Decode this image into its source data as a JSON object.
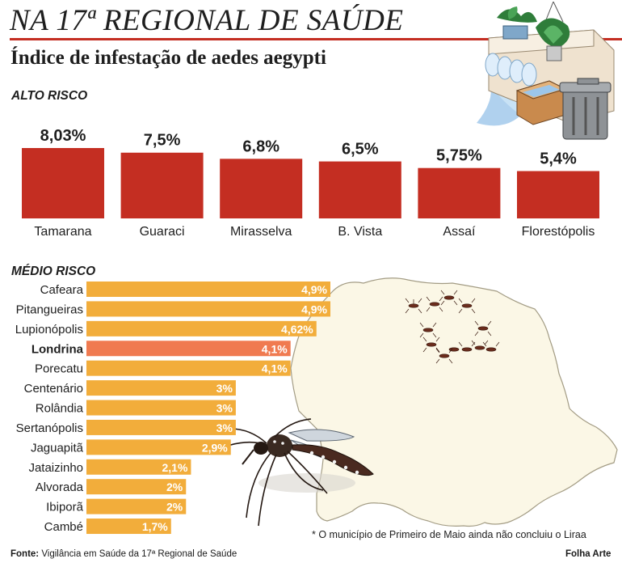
{
  "header": {
    "title": "NA 17ª REGIONAL DE SAÚDE",
    "subtitle": "Índice de infestação de aedes aegypti"
  },
  "colors": {
    "accent": "#c42e22",
    "high_bar": "#c42e22",
    "medium_bar": "#f2ad3b",
    "highlight_bar": "#f07a50"
  },
  "chart_data": [
    {
      "type": "bar",
      "title": "ALTO RISCO",
      "categories": [
        "Tamarana",
        "Guaraci",
        "Mirasselva",
        "B. Vista",
        "Assaí",
        "Florestópolis"
      ],
      "values": [
        8.03,
        7.5,
        6.8,
        6.5,
        5.75,
        5.4
      ],
      "labels": [
        "8,03%",
        "7,5%",
        "6,8%",
        "6,5%",
        "5,75%",
        "5,4%"
      ],
      "orientation": "vertical"
    },
    {
      "type": "bar",
      "title": "MÉDIO RISCO",
      "categories": [
        "Cafeara",
        "Pitangueiras",
        "Lupionópolis",
        "Londrina",
        "Porecatu",
        "Centenário",
        "Rolândia",
        "Sertanópolis",
        "Jaguapitã",
        "Jataizinho",
        "Alvorada",
        "Ibiporã",
        "Cambé"
      ],
      "values": [
        4.9,
        4.9,
        4.62,
        4.1,
        4.1,
        3,
        3,
        3,
        2.9,
        2.1,
        2,
        2,
        1.7
      ],
      "labels": [
        "4,9%",
        "4,9%",
        "4,62%",
        "4,1%",
        "4,1%",
        "3%",
        "3%",
        "3%",
        "2,9%",
        "2,1%",
        "2%",
        "2%",
        "1,7%"
      ],
      "highlight": "Londrina",
      "orientation": "horizontal"
    }
  ],
  "footnote": "* O município de Primeiro de Maio ainda não concluiu o Liraa",
  "source": {
    "label": "Fonte:",
    "text": "Vigilância em Saúde da 17ª Regional de Saúde"
  },
  "credit": "Folha Arte"
}
